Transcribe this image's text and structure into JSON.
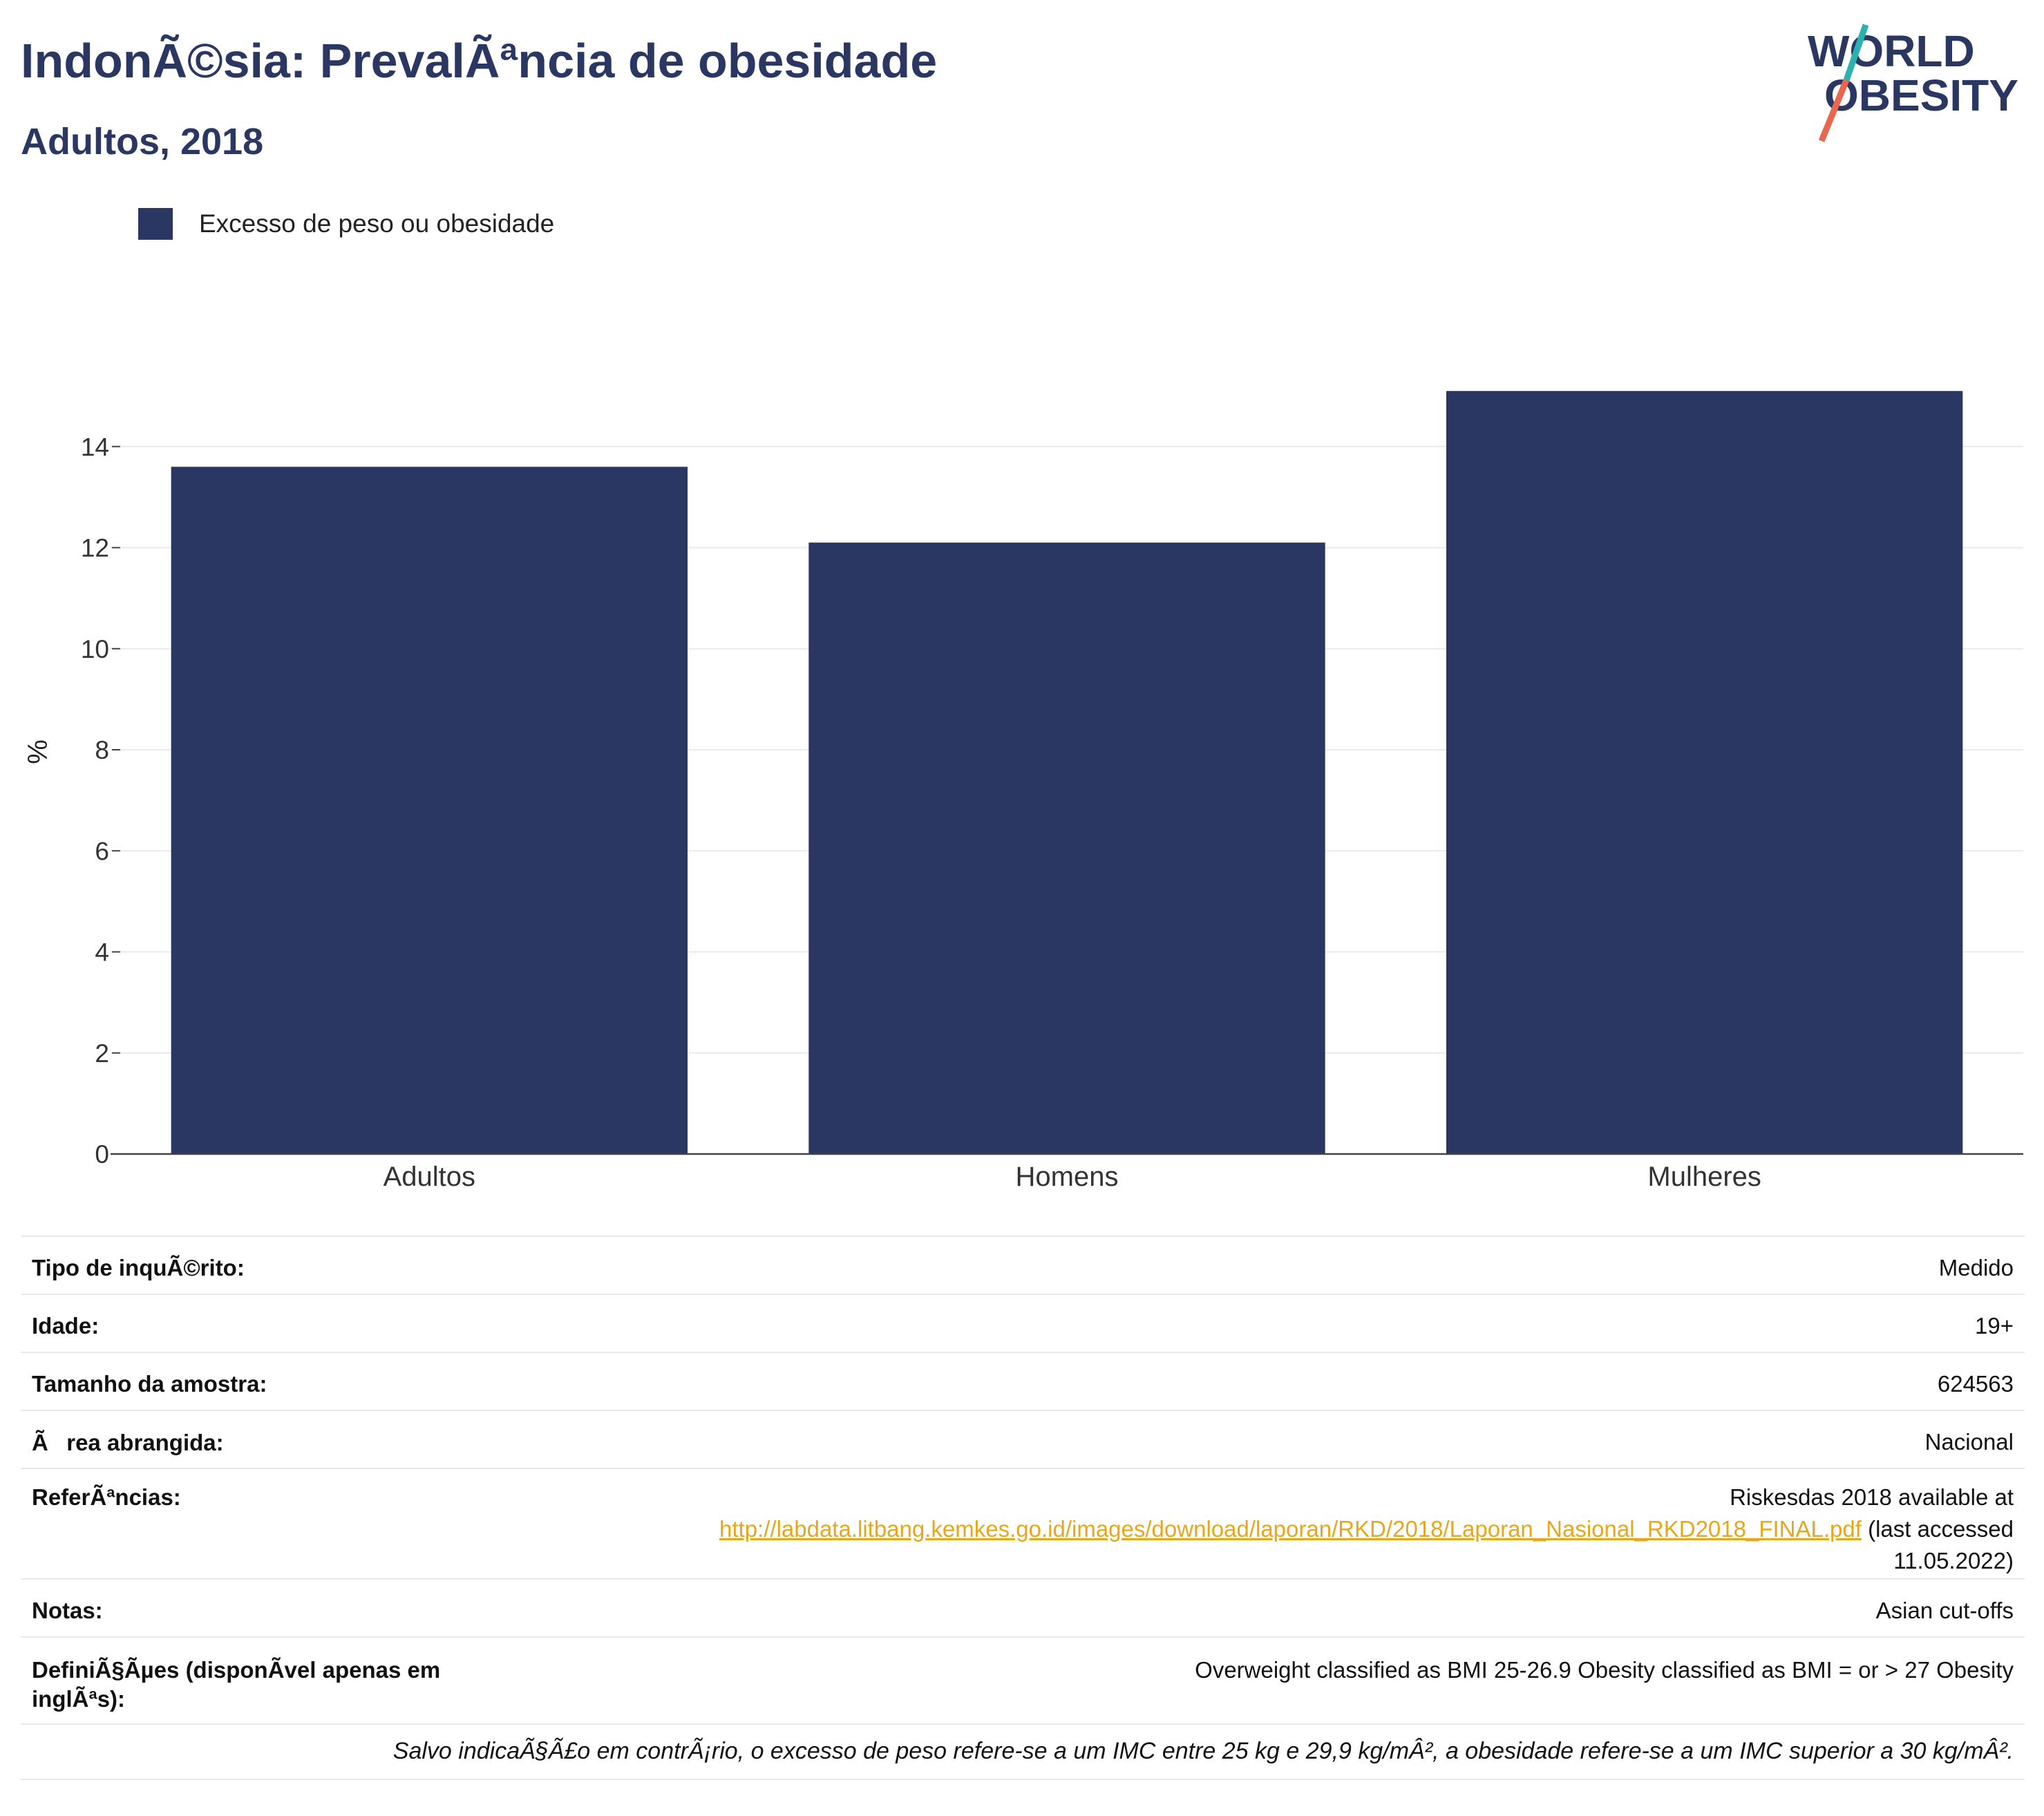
{
  "header": {
    "title": "IndonÃ©sia: PrevalÃªncia de obesidade",
    "subtitle": "Adultos, 2018"
  },
  "logo": {
    "line1": "WORLD",
    "line2": "OBESITY",
    "slash_colors": [
      "#2ab1b0",
      "#e8674e"
    ]
  },
  "legend": {
    "label": "Excesso de peso ou obesidade",
    "color": "#2b3763"
  },
  "chart_data": {
    "type": "bar",
    "categories": [
      "Adultos",
      "Homens",
      "Mulheres"
    ],
    "series": [
      {
        "name": "Excesso de peso ou obesidade",
        "values": [
          13.6,
          12.1,
          15.1
        ],
        "color": "#2b3763"
      }
    ],
    "ylabel": "%",
    "xlabel": "",
    "ylim": [
      0,
      16
    ],
    "yticks": [
      0,
      2,
      4,
      6,
      8,
      10,
      12,
      14
    ],
    "grid": true,
    "legend_position": "top-left"
  },
  "info_table": {
    "survey_type_label": "Tipo de inquÃ©rito:",
    "survey_type_value": "Medido",
    "age_label": "Idade:",
    "age_value": "19+",
    "sample_label": "Tamanho da amostra:",
    "sample_value": "624563",
    "area_label": "Ãrea abrangida:",
    "area_value": "Nacional",
    "ref_label": "ReferÃªncias:",
    "ref_text_1": "Riskesdas 2018 available at",
    "ref_link": "http://labdata.litbang.kemkes.go.id/images/download/laporan/RKD/2018/Laporan_Nasional_RKD2018_FINAL.pdf",
    "ref_text_2": " (last accessed",
    "ref_text_3": "11.05.2022)",
    "notes_label": "Notas:",
    "notes_value": "Asian cut-offs",
    "def_label_1": "DefiniÃ§Ãµes (disponÃ­vel apenas em",
    "def_label_2": "inglÃªs):",
    "def_value": "Overweight classified as BMI 25-26.9 Obesity classified as BMI = or > 27 Obesity"
  },
  "footnote": "Salvo indicaÃ§Ã£o em contrÃ¡rio, o excesso de peso refere-se a um IMC entre 25 kg e 29,9 kg/mÂ², a obesidade refere-se a um IMC superior a 30 kg/mÂ²."
}
